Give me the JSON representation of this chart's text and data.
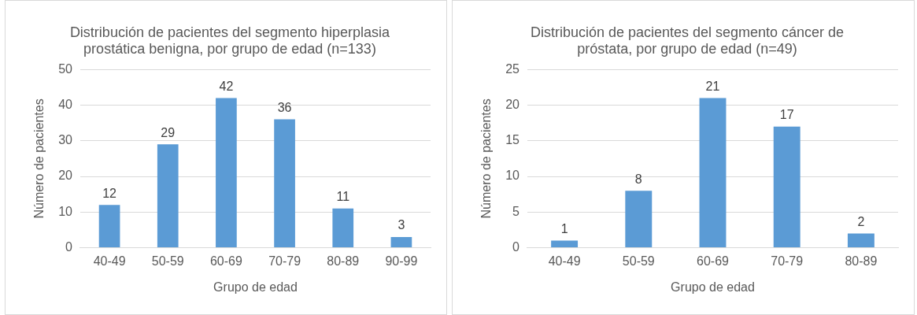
{
  "chart_data": [
    {
      "type": "bar",
      "title": "Distribución de pacientes del segmento hiperplasia prostática benigna, por grupo de edad (n=133)",
      "xlabel": "Grupo de edad",
      "ylabel": "Número de pacientes",
      "categories": [
        "40-49",
        "50-59",
        "60-69",
        "70-79",
        "80-89",
        "90-99"
      ],
      "values": [
        12,
        29,
        42,
        36,
        11,
        3
      ],
      "color": "#5b9bd5",
      "ylim": [
        0,
        50
      ],
      "yticks": [
        0,
        10,
        20,
        30,
        40,
        50
      ],
      "grid": "y",
      "data_labels": true
    },
    {
      "type": "bar",
      "title": "Distribución de pacientes del segmento cáncer de próstata, por grupo de edad (n=49)",
      "xlabel": "Grupo de edad",
      "ylabel": "Número de pacientes",
      "categories": [
        "40-49",
        "50-59",
        "60-69",
        "70-79",
        "80-89"
      ],
      "values": [
        1,
        8,
        21,
        17,
        2
      ],
      "color": "#5b9bd5",
      "ylim": [
        0,
        25
      ],
      "yticks": [
        0,
        5,
        10,
        15,
        20,
        25
      ],
      "grid": "y",
      "data_labels": true
    }
  ]
}
